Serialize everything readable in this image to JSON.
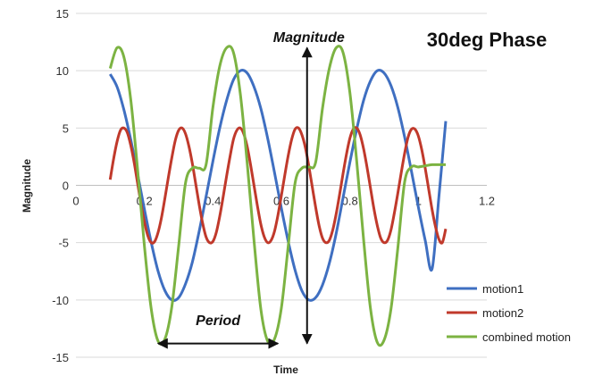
{
  "chart_data": {
    "type": "line",
    "title": "30deg Phase",
    "xlabel": "Time",
    "ylabel": "Magnitude",
    "xlim": [
      0,
      1.2
    ],
    "ylim": [
      -15,
      15
    ],
    "xticks": [
      "0",
      "0.2",
      "0.4",
      "0.6",
      "0.8",
      "1",
      "1.2"
    ],
    "yticks": [
      "15",
      "10",
      "5",
      "0",
      "-5",
      "-10",
      "-15"
    ],
    "grid": "horizontal",
    "legend_position": "bottom-right",
    "series": [
      {
        "name": "motion1",
        "color": "#3f6fc1",
        "x": [
          0.1,
          0.12,
          0.14,
          0.16,
          0.18,
          0.2,
          0.22,
          0.24,
          0.26,
          0.28,
          0.3,
          0.32,
          0.34,
          0.36,
          0.38,
          0.4,
          0.42,
          0.44,
          0.46,
          0.48,
          0.5,
          0.52,
          0.54,
          0.56,
          0.58,
          0.6,
          0.62,
          0.64,
          0.66,
          0.68,
          0.7,
          0.72,
          0.74,
          0.76,
          0.78,
          0.8,
          0.82,
          0.84,
          0.86,
          0.88,
          0.9,
          0.92,
          0.94,
          0.96,
          0.98,
          1.0,
          1.02,
          1.04,
          1.06,
          1.08
        ],
        "y": [
          9.7,
          8.6,
          6.6,
          4.0,
          1.0,
          -2.1,
          -5.0,
          -7.5,
          -9.2,
          -10.0,
          -9.8,
          -8.6,
          -6.7,
          -4.0,
          -1.0,
          2.1,
          5.0,
          7.4,
          9.2,
          10.0,
          9.8,
          8.6,
          6.7,
          4.1,
          1.1,
          -2.0,
          -4.9,
          -7.4,
          -9.2,
          -10.0,
          -9.8,
          -8.7,
          -6.8,
          -4.2,
          -1.1,
          2.0,
          4.9,
          7.4,
          9.1,
          10.0,
          9.8,
          8.7,
          6.8,
          4.2,
          1.2,
          -1.9,
          -4.8,
          -7.3,
          -1.0,
          5.6
        ]
      },
      {
        "name": "motion2",
        "color": "#c0392b",
        "x": [
          0.1,
          0.11,
          0.12,
          0.13,
          0.14,
          0.15,
          0.16,
          0.17,
          0.18,
          0.19,
          0.2,
          0.21,
          0.22,
          0.23,
          0.24,
          0.25,
          0.26,
          0.27,
          0.28,
          0.29,
          0.3,
          0.31,
          0.32,
          0.33,
          0.34,
          0.35,
          0.36,
          0.37,
          0.38,
          0.39,
          0.4,
          0.41,
          0.42,
          0.43,
          0.44,
          0.45,
          0.46,
          0.47,
          0.48,
          0.49,
          0.5,
          0.51,
          0.52,
          0.53,
          0.54,
          0.55,
          0.56,
          0.57,
          0.58,
          0.59,
          0.6,
          0.61,
          0.62,
          0.63,
          0.64,
          0.65,
          0.66,
          0.67,
          0.68,
          0.69,
          0.7,
          0.71,
          0.72,
          0.73,
          0.74,
          0.75,
          0.76,
          0.77,
          0.78,
          0.79,
          0.8,
          0.81,
          0.82,
          0.83,
          0.84,
          0.85,
          0.86,
          0.87,
          0.88,
          0.89,
          0.9,
          0.91,
          0.92,
          0.93,
          0.94,
          0.95,
          0.96,
          0.97,
          0.98,
          0.99,
          1.0,
          1.01,
          1.02,
          1.03,
          1.04,
          1.05,
          1.06,
          1.07,
          1.08
        ],
        "y": [
          0.5,
          2.3,
          3.8,
          4.8,
          5.0,
          4.6,
          3.5,
          2.0,
          0.2,
          -1.6,
          -3.2,
          -4.4,
          -5.0,
          -4.9,
          -4.1,
          -2.8,
          -1.1,
          0.7,
          2.4,
          3.9,
          4.8,
          5.0,
          4.5,
          3.4,
          1.9,
          0.1,
          -1.7,
          -3.3,
          -4.5,
          -5.0,
          -4.9,
          -4.1,
          -2.7,
          -1.0,
          0.8,
          2.5,
          4.0,
          4.8,
          5.0,
          4.5,
          3.4,
          1.8,
          0.0,
          -1.8,
          -3.4,
          -4.5,
          -5.0,
          -4.8,
          -4.0,
          -2.6,
          -0.9,
          0.9,
          2.6,
          4.0,
          4.9,
          5.0,
          4.4,
          3.3,
          1.7,
          -0.1,
          -1.9,
          -3.5,
          -4.6,
          -5.0,
          -4.8,
          -3.9,
          -2.5,
          -0.8,
          1.0,
          2.7,
          4.1,
          4.9,
          5.0,
          4.4,
          3.2,
          1.6,
          -0.2,
          -2.0,
          -3.5,
          -4.6,
          -5.0,
          -4.8,
          -3.9,
          -2.4,
          -0.7,
          1.1,
          2.8,
          4.2,
          4.9,
          4.9,
          4.3,
          3.1,
          1.5,
          -0.3,
          -2.1,
          -3.6,
          -4.7,
          -5.0,
          -3.8
        ]
      },
      {
        "name": "combined motion",
        "color": "#7cb342",
        "x": [
          0.1,
          0.12,
          0.14,
          0.16,
          0.18,
          0.2,
          0.22,
          0.24,
          0.26,
          0.28,
          0.3,
          0.32,
          0.34,
          0.36,
          0.38,
          0.4,
          0.42,
          0.44,
          0.46,
          0.48,
          0.5,
          0.52,
          0.54,
          0.56,
          0.58,
          0.6,
          0.62,
          0.64,
          0.66,
          0.68,
          0.7,
          0.72,
          0.74,
          0.76,
          0.78,
          0.8,
          0.82,
          0.84,
          0.86,
          0.88,
          0.9,
          0.92,
          0.94,
          0.96,
          0.98,
          1.0,
          1.02,
          1.04,
          1.06,
          1.08
        ],
        "y": [
          10.2,
          12.0,
          11.2,
          7.5,
          1.4,
          -5.3,
          -10.8,
          -13.6,
          -13.4,
          -10.6,
          -5.3,
          0.2,
          1.5,
          1.5,
          1.8,
          6.8,
          10.4,
          12.0,
          11.6,
          8.0,
          2.0,
          -4.8,
          -10.8,
          -13.6,
          -13.4,
          -10.7,
          -5.3,
          0.2,
          1.5,
          1.6,
          2.0,
          6.7,
          10.2,
          12.0,
          11.6,
          8.1,
          2.1,
          -4.7,
          -10.7,
          -13.7,
          -13.5,
          -10.8,
          -5.5,
          0.3,
          1.6,
          1.6,
          1.7,
          1.8,
          1.8,
          1.8
        ]
      }
    ],
    "annotations": [
      {
        "text": "Magnitude",
        "arrow": "vertical",
        "x": 0.675,
        "y_from": -13.8,
        "y_to": 12.0,
        "label_y": 12.5
      },
      {
        "text": "Period",
        "arrow": "horizontal",
        "x_from": 0.24,
        "x_to": 0.59,
        "y": -13.8,
        "label_y": -12.2
      }
    ]
  }
}
